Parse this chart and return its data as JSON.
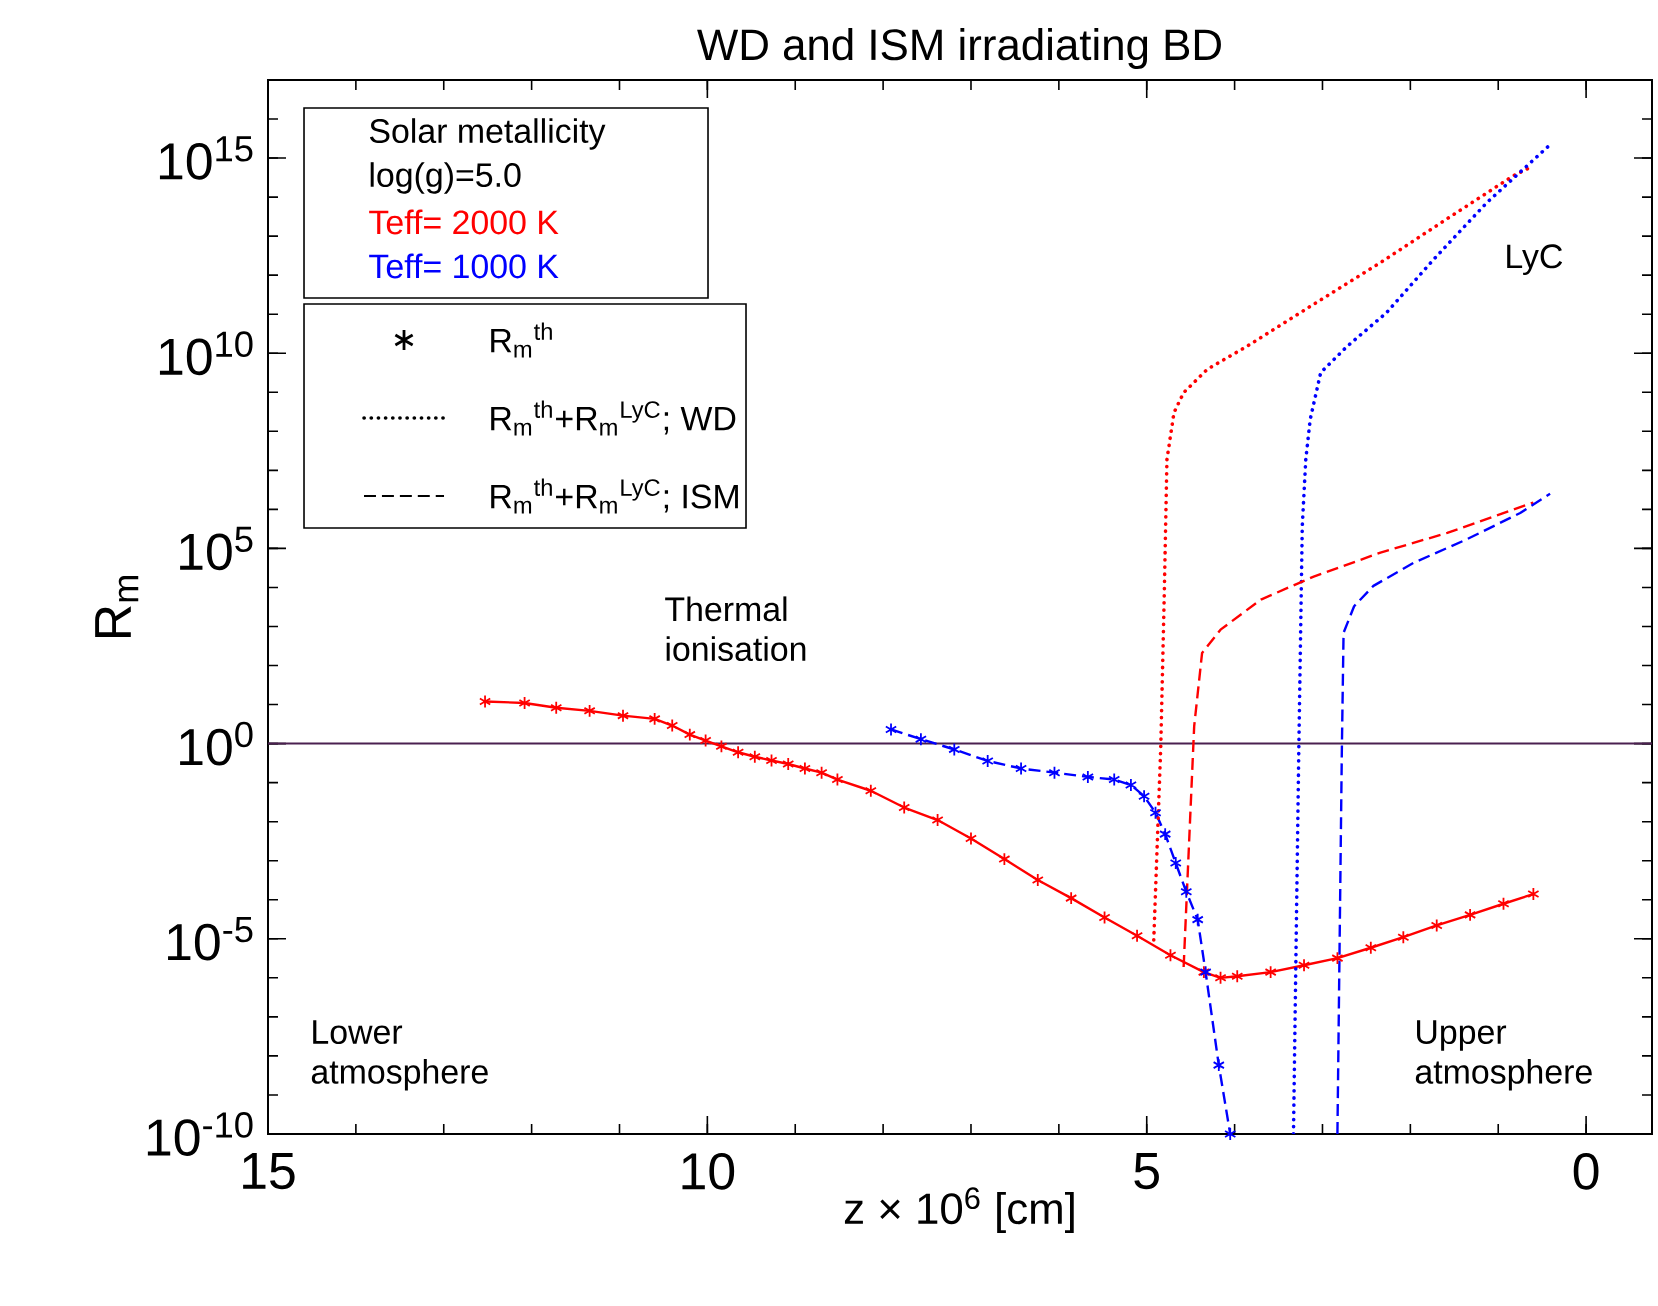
{
  "chart_data": {
    "type": "line",
    "title": "WD and ISM irradiating BD",
    "xlabel": "z × 10$^{6}$ [cm]",
    "ylabel": "R$_{m}$",
    "log": "y",
    "grid": false,
    "xlim": [
      15,
      -0.75
    ],
    "ylim": [
      1e-10,
      1e+17
    ],
    "xticks": [
      15,
      10,
      5,
      0
    ],
    "yticks": [
      {
        "value": 1e-10,
        "label": "10$^{-10}$"
      },
      {
        "value": 1e-05,
        "label": "10$^{-5}$"
      },
      {
        "value": 1,
        "label": "10$^{0}$"
      },
      {
        "value": 100000.0,
        "label": "10$^{5}$"
      },
      {
        "value": 10000000000.0,
        "label": "10$^{10}$"
      },
      {
        "value": 1000000000000000.0,
        "label": "10$^{15}$"
      }
    ],
    "ref_lines": [
      {
        "axis": "y",
        "value": 1,
        "color": "#4b2050"
      }
    ],
    "annotations": [
      "Solar metallicity",
      "log(g)=5.0",
      "Teff= 2000 K",
      "Teff= 1000 K",
      "R$_{m}$$^{th}$",
      "R$_{m}$$^{th}$+R$_{m}$$^{LyC}$; WD",
      "R$_{m}$$^{th}$+R$_{m}$$^{LyC}$; ISM",
      "Thermal ionisation",
      "LyC",
      "Lower atmosphere",
      "Upper atmosphere"
    ],
    "series": [
      {
        "color": "#ff0000",
        "marker": "cross",
        "line_style": "solid",
        "x": [
          12.53,
          12.08,
          11.72,
          11.34,
          10.96,
          10.6,
          10.4,
          10.2,
          10.02,
          9.84,
          9.65,
          9.46,
          9.27,
          9.08,
          8.89,
          8.7,
          8.52,
          8.14,
          7.76,
          7.38,
          7.0,
          6.62,
          6.24,
          5.86,
          5.48,
          5.11,
          4.73,
          4.35,
          4.16,
          3.97,
          3.59,
          3.21,
          2.83,
          2.45,
          2.08,
          1.7,
          1.32,
          0.94,
          0.6
        ],
        "values": [
          12,
          11,
          8.3,
          6.9,
          5.2,
          4.3,
          2.9,
          1.7,
          1.2,
          0.85,
          0.6,
          0.46,
          0.37,
          0.3,
          0.23,
          0.18,
          0.12,
          0.062,
          0.023,
          0.011,
          0.0037,
          0.0011,
          0.00032,
          0.00011,
          3.5e-05,
          1.2e-05,
          3.8e-06,
          1.4e-06,
          1e-06,
          1.1e-06,
          1.4e-06,
          2.1e-06,
          3.2e-06,
          5.9e-06,
          1.1e-05,
          2.2e-05,
          4.1e-05,
          7.9e-05,
          0.00014
        ]
      },
      {
        "color": "#0000ff",
        "marker": "cross",
        "line_style": "dashed",
        "x": [
          7.91,
          7.57,
          7.19,
          6.81,
          6.43,
          6.05,
          5.67,
          5.37,
          5.18,
          5.03,
          4.9,
          4.79,
          4.67,
          4.55,
          4.42,
          4.33,
          4.18,
          4.05
        ],
        "values": [
          2.3,
          1.3,
          0.71,
          0.36,
          0.23,
          0.18,
          0.14,
          0.12,
          0.087,
          0.045,
          0.017,
          0.0048,
          0.00087,
          0.00016,
          3.1e-05,
          1.4e-06,
          5.8e-09,
          1e-10
        ]
      },
      {
        "color": "#ff0000",
        "marker": "none",
        "line_style": "dotted",
        "x": [
          4.92,
          4.84,
          4.8,
          4.77,
          4.69,
          4.58,
          4.31,
          3.86,
          3.1,
          2.34,
          1.58,
          0.83,
          0.6
        ],
        "values": [
          9.3e-06,
          0.89,
          7200.0,
          19000000.0,
          300000000.0,
          980000000.0,
          3900000000.0,
          15000000000.0,
          180000000000.0,
          2100000000000.0,
          28000000000000.0,
          350000000000000.0,
          630000000000000.0
        ]
      },
      {
        "color": "#0000ff",
        "marker": "none",
        "line_style": "dotted",
        "x": [
          3.33,
          3.27,
          3.23,
          3.19,
          3.14,
          3.02,
          2.72,
          2.27,
          1.73,
          1.13,
          0.41
        ],
        "values": [
          1e-10,
          0.58,
          370000.0,
          19000000.0,
          200000000.0,
          3200000000.0,
          15000000000.0,
          110000000000.0,
          2600000000000.0,
          72000000000000.0,
          2200000000000000.0
        ]
      },
      {
        "color": "#ff0000",
        "marker": "none",
        "line_style": "dashed",
        "x": [
          4.58,
          4.46,
          4.37,
          4.16,
          3.7,
          3.1,
          2.34,
          1.58,
          0.6
        ],
        "values": [
          1.9e-06,
          2.8,
          210.0,
          830.0,
          4900.0,
          19000.0,
          78000.0,
          250000.0,
          1500000.0
        ]
      },
      {
        "color": "#0000ff",
        "marker": "none",
        "line_style": "dashed",
        "x": [
          2.83,
          2.78,
          2.76,
          2.64,
          2.42,
          1.96,
          1.36,
          0.75,
          0.41
        ],
        "values": [
          1e-10,
          0.58,
          690.0,
          3300.0,
          11000.0,
          43000.0,
          170000.0,
          810000.0,
          2500000.0
        ]
      }
    ]
  }
}
